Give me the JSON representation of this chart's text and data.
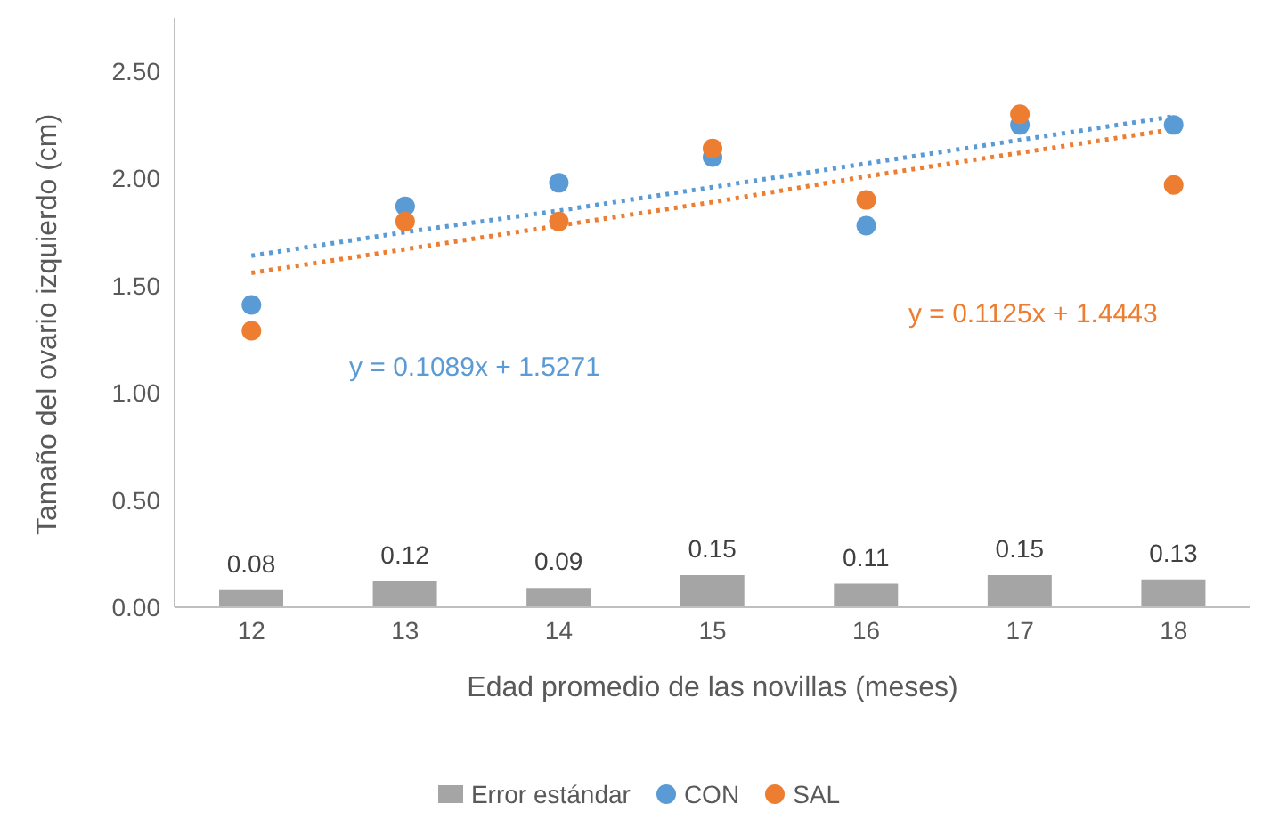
{
  "chart_data": {
    "type": "bar",
    "xlabel": "Edad promedio de las novillas (meses)",
    "ylabel": "Tamaño del ovario izquierdo (cm)",
    "categories": [
      "12",
      "13",
      "14",
      "15",
      "16",
      "17",
      "18"
    ],
    "series": [
      {
        "name": "Error estándar",
        "color": "#a5a5a5",
        "values": [
          0.08,
          0.12,
          0.09,
          0.15,
          0.11,
          0.15,
          0.13
        ],
        "value_labels": [
          "0.08",
          "0.12",
          "0.09",
          "0.15",
          "0.11",
          "0.15",
          "0.13"
        ]
      },
      {
        "name": "CON",
        "type": "scatter",
        "color": "#5b9bd5",
        "marker": "circle",
        "values": [
          1.41,
          1.87,
          1.98,
          2.1,
          1.78,
          2.25,
          2.25
        ]
      },
      {
        "name": "SAL",
        "type": "scatter",
        "color": "#ed7d31",
        "marker": "circle",
        "values": [
          1.29,
          1.8,
          1.8,
          2.14,
          1.9,
          2.3,
          1.97
        ]
      },
      {
        "type": "line",
        "color": "#5b9bd5",
        "line_style": "dotted",
        "marker": "none",
        "values": [
          1.64,
          1.75,
          1.85,
          1.96,
          2.07,
          2.18,
          2.29
        ]
      },
      {
        "type": "line",
        "color": "#ed7d31",
        "line_style": "dotted",
        "marker": "none",
        "values": [
          1.56,
          1.67,
          1.78,
          1.89,
          2.01,
          2.12,
          2.23
        ]
      }
    ],
    "annotations": [
      "y = 0.1089x + 1.5271",
      "y = 0.1125x + 1.4443"
    ],
    "ylim": [
      0,
      2.75
    ],
    "yticks": [
      {
        "value": 0,
        "label": "0.00"
      },
      {
        "value": 0.5,
        "label": "0.50"
      },
      {
        "value": 1,
        "label": "1.00"
      },
      {
        "value": 1.5,
        "label": "1.50"
      },
      {
        "value": 2,
        "label": "2.00"
      },
      {
        "value": 2.5,
        "label": "2.50"
      }
    ],
    "grid": false,
    "legend": "bottom"
  }
}
